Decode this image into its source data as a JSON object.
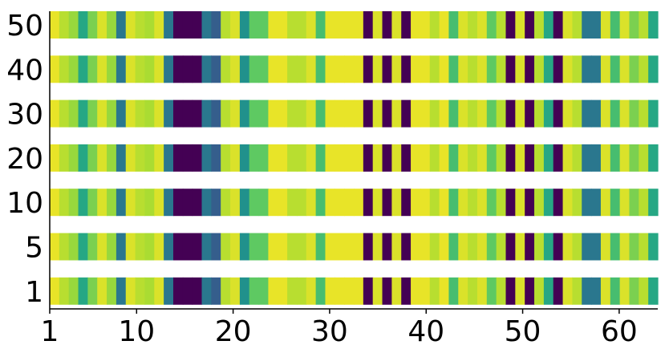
{
  "chart_data": {
    "type": "heatmap",
    "title": "",
    "xlabel": "",
    "ylabel": "",
    "xlim": [
      1,
      64
    ],
    "x_ticks": [
      1,
      10,
      20,
      30,
      40,
      50,
      60
    ],
    "rows": [
      "50",
      "40",
      "30",
      "20",
      "10",
      "5",
      "1"
    ],
    "colormap": "viridis",
    "value_range": [
      0,
      1
    ],
    "values": [
      0.97,
      0.9,
      0.85,
      0.6,
      0.8,
      0.95,
      0.85,
      0.4,
      0.95,
      0.9,
      0.88,
      0.95,
      0.4,
      0.0,
      0.0,
      0.0,
      0.4,
      0.3,
      0.9,
      0.95,
      0.5,
      0.75,
      0.75,
      0.97,
      0.97,
      0.9,
      0.9,
      0.95,
      0.7,
      0.97,
      0.97,
      0.97,
      0.97,
      0.0,
      0.95,
      0.0,
      0.95,
      0.0,
      0.97,
      0.97,
      0.9,
      0.97,
      0.7,
      0.95,
      0.9,
      0.95,
      0.75,
      0.9,
      0.0,
      0.95,
      0.0,
      0.9,
      0.6,
      0.0,
      0.95,
      0.9,
      0.4,
      0.4,
      0.95,
      0.7,
      0.95,
      0.8,
      0.9,
      0.6
    ],
    "description": "Each row repeats the same per-position pattern"
  },
  "colors": {
    "background": "#ffffff",
    "axis": "#000000",
    "viridis_low": "#440154",
    "viridis_mid": "#21918c",
    "viridis_high": "#fde725"
  }
}
